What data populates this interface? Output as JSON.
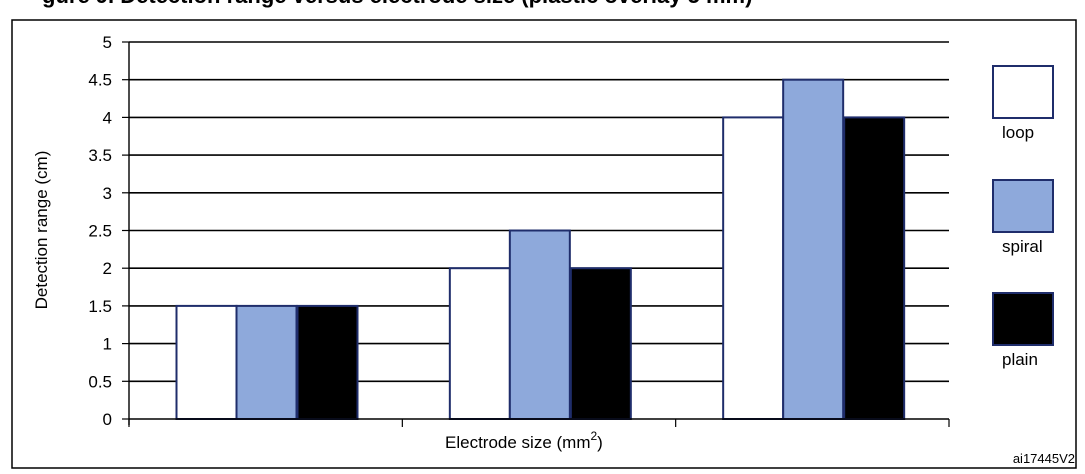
{
  "figure": {
    "title": "gure 9. Detection range versus electrode size (plastic overlay 5 mm)",
    "reference": "ai17445V2"
  },
  "chart_data": {
    "type": "bar",
    "ylabel": "Detection range (cm)",
    "xlabel_main": "Electrode size (mm",
    "xlabel_sup": "2",
    "xlabel_close": ")",
    "ylim": [
      0,
      5
    ],
    "ytick_step": 0.5,
    "yticks": [
      "0",
      "0.5",
      "1",
      "1.5",
      "2",
      "2.5",
      "3",
      "3.5",
      "4",
      "4.5",
      "5"
    ],
    "grid": "horizontal",
    "legend_position": "right",
    "categories": [
      "",
      "",
      ""
    ],
    "series": [
      {
        "name": "loop",
        "values": [
          1.5,
          2.0,
          4.0
        ],
        "color": "#ffffff"
      },
      {
        "name": "spiral",
        "values": [
          1.5,
          2.5,
          4.5
        ],
        "color": "#8ea9db"
      },
      {
        "name": "plain",
        "values": [
          1.5,
          2.0,
          4.0
        ],
        "color": "#000000"
      }
    ],
    "bar_border_color": "#1f2d6b"
  }
}
